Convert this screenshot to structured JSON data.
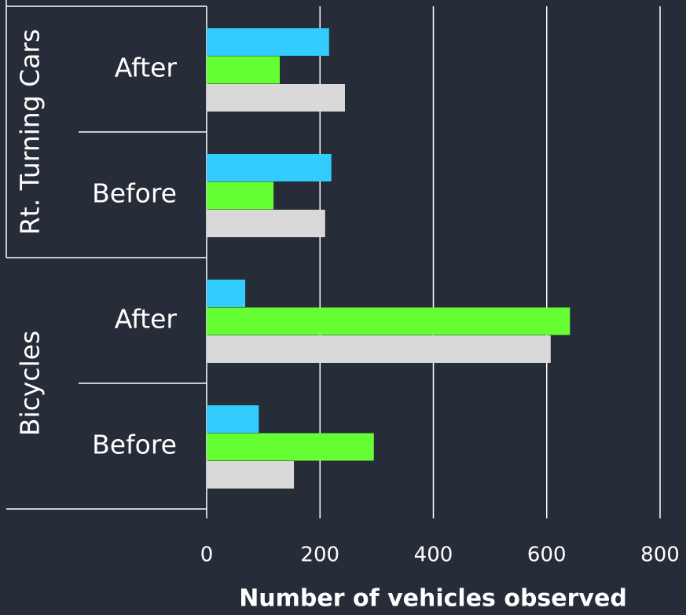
{
  "chart_data": {
    "type": "bar",
    "orientation": "horizontal",
    "x_label": "Number of vehicles observed",
    "groups": [
      {
        "name": "Rt. Turning Cars",
        "categories": [
          "After",
          "Before"
        ]
      },
      {
        "name": "Bicycles",
        "categories": [
          "After",
          "Before"
        ]
      }
    ],
    "series": [
      {
        "color": "#33ccff",
        "values": [
          216,
          220,
          68,
          92
        ]
      },
      {
        "color": "#66ff33",
        "values": [
          129,
          118,
          641,
          295
        ]
      },
      {
        "color": "#d9d9d9",
        "values": [
          244,
          209,
          607,
          154
        ]
      }
    ],
    "xlim": [
      0,
      800
    ],
    "xticks": [
      0,
      200,
      400,
      600,
      800
    ],
    "grid": true,
    "background": "#272d38"
  }
}
